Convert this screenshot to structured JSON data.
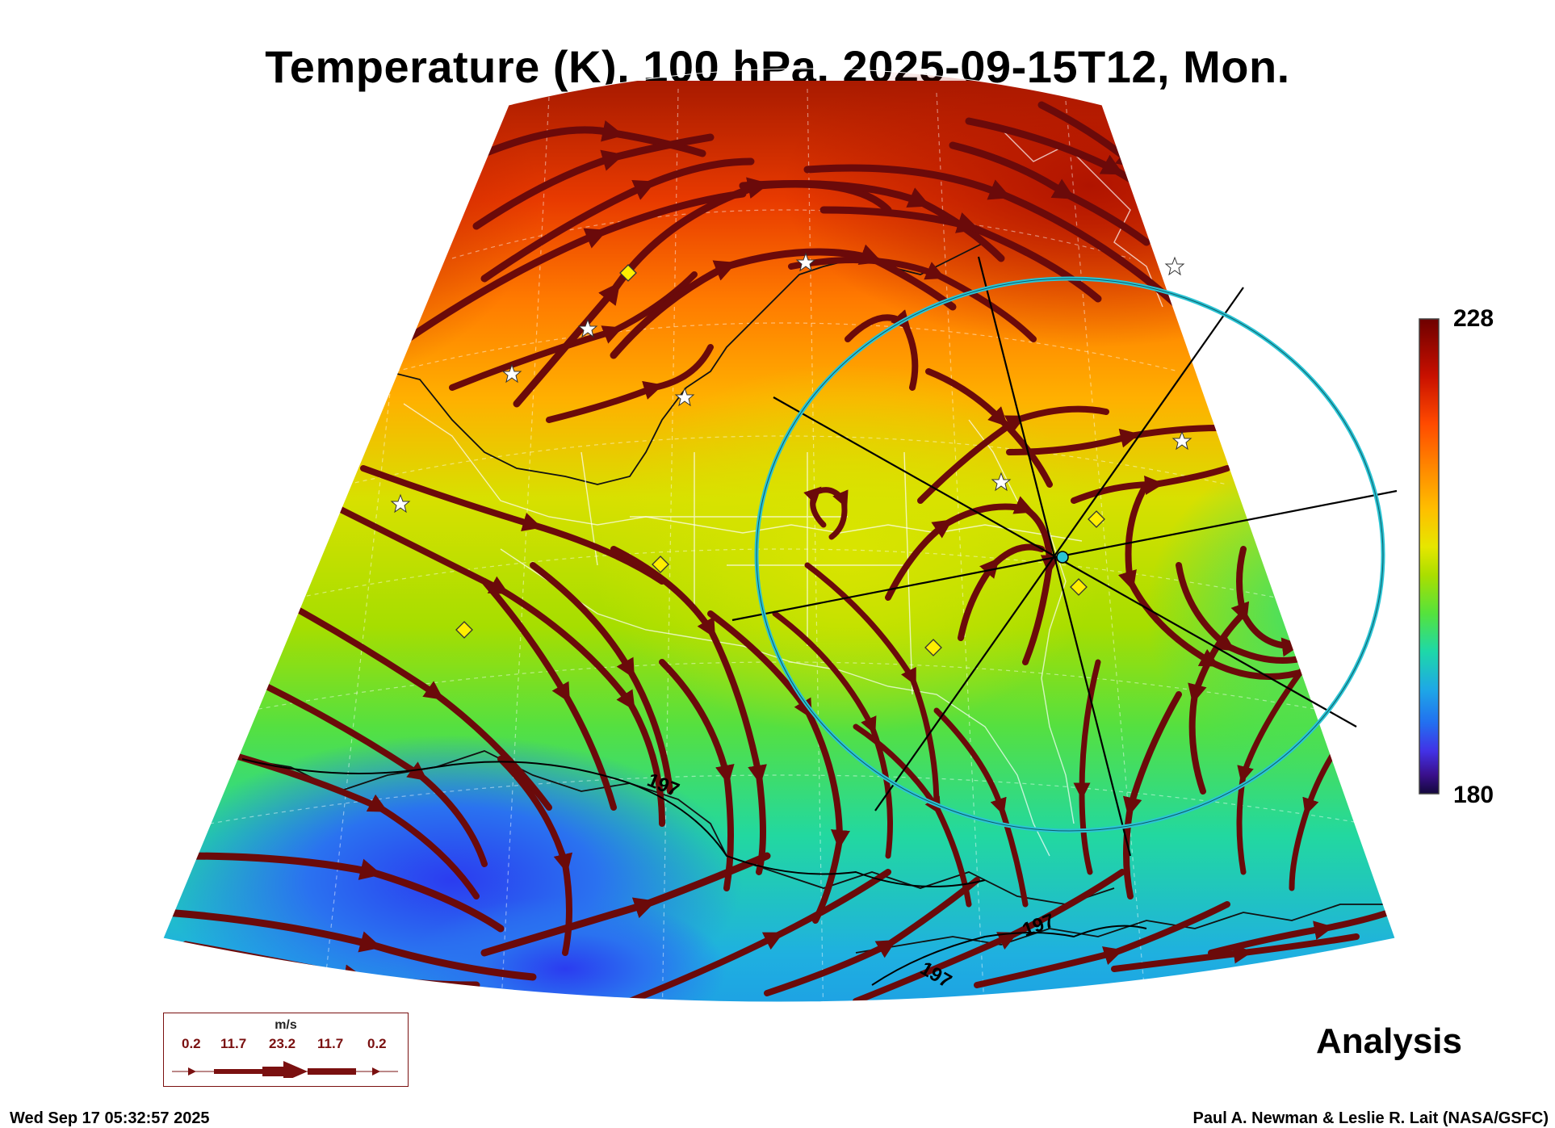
{
  "title": "Temperature (K), 100 hPa, 2025-09-15T12, Mon.",
  "colorbar": {
    "max_label": "228",
    "min_label": "180",
    "colors": [
      "#6e0000",
      "#c81000",
      "#ff4a00",
      "#ff8c00",
      "#ffbe00",
      "#e6e600",
      "#aade00",
      "#55e33c",
      "#1ed8a8",
      "#1ea8e6",
      "#2270f0",
      "#4232e6",
      "#3a108c",
      "#14083c"
    ]
  },
  "contour_labels": [
    "197",
    "197",
    "197"
  ],
  "legend": {
    "unit": "m/s",
    "values": [
      "0.2",
      "11.7",
      "23.2",
      "11.7",
      "0.2"
    ]
  },
  "analysis_label": "Analysis",
  "timestamp": "Wed Sep 17 05:32:57 2025",
  "credit": "Paul A. Newman & Leslie R. Lait (NASA/GSFC)",
  "colors": {
    "streamline": "#6b0a0a",
    "ring": "#2bc4d4",
    "marker_diamond": "#ffee00"
  },
  "icons": [
    "star-icon",
    "diamond-icon",
    "center-marker-icon"
  ]
}
